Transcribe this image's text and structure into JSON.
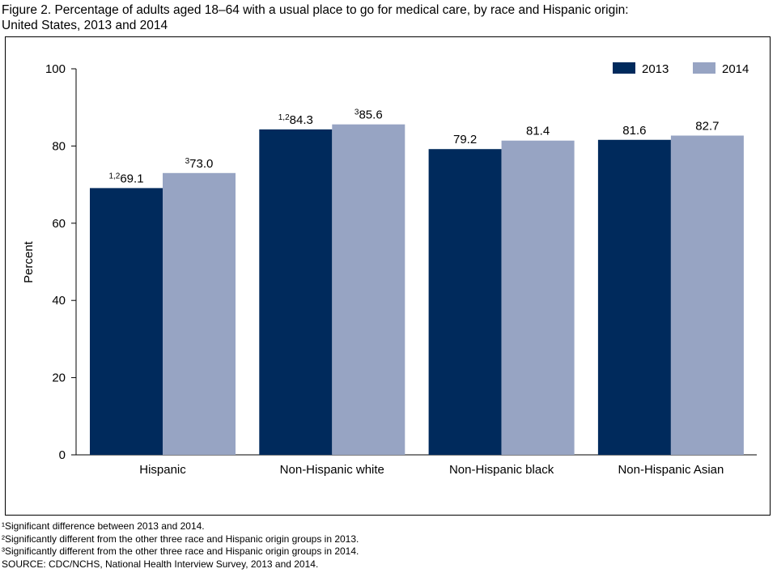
{
  "title_line1": "Figure 2. Percentage of adults aged 18–64 with a usual place to go for medical care, by race and Hispanic origin:",
  "title_line2": "United States, 2013 and 2014",
  "chart_data": {
    "type": "bar",
    "title": "Figure 2. Percentage of adults aged 18–64 with a usual place to go for medical care, by race and Hispanic origin: United States, 2013 and 2014",
    "ylabel": "Percent",
    "xlabel": "",
    "ylim": [
      0,
      100
    ],
    "yticks": [
      0,
      20,
      40,
      60,
      80,
      100
    ],
    "grid": false,
    "legend_position": "top-right",
    "categories": [
      "Hispanic",
      "Non-Hispanic white",
      "Non-Hispanic black",
      "Non-Hispanic Asian"
    ],
    "series": [
      {
        "name": "2013",
        "color": "#002a5c",
        "values": [
          69.1,
          84.3,
          79.2,
          81.6
        ],
        "label_superscripts": [
          "1,2",
          "1,2",
          "",
          ""
        ]
      },
      {
        "name": "2014",
        "color": "#97a4c3",
        "values": [
          73.0,
          85.6,
          81.4,
          82.7
        ],
        "label_superscripts": [
          "3",
          "3",
          "",
          ""
        ]
      }
    ]
  },
  "footnotes": [
    "¹Significant difference between 2013 and 2014.",
    "²Significantly different from the other three race and Hispanic origin groups in 2013.",
    "³Significantly different from the other three race and Hispanic origin groups in 2014.",
    "SOURCE: CDC/NCHS, National Health Interview Survey, 2013 and 2014."
  ]
}
